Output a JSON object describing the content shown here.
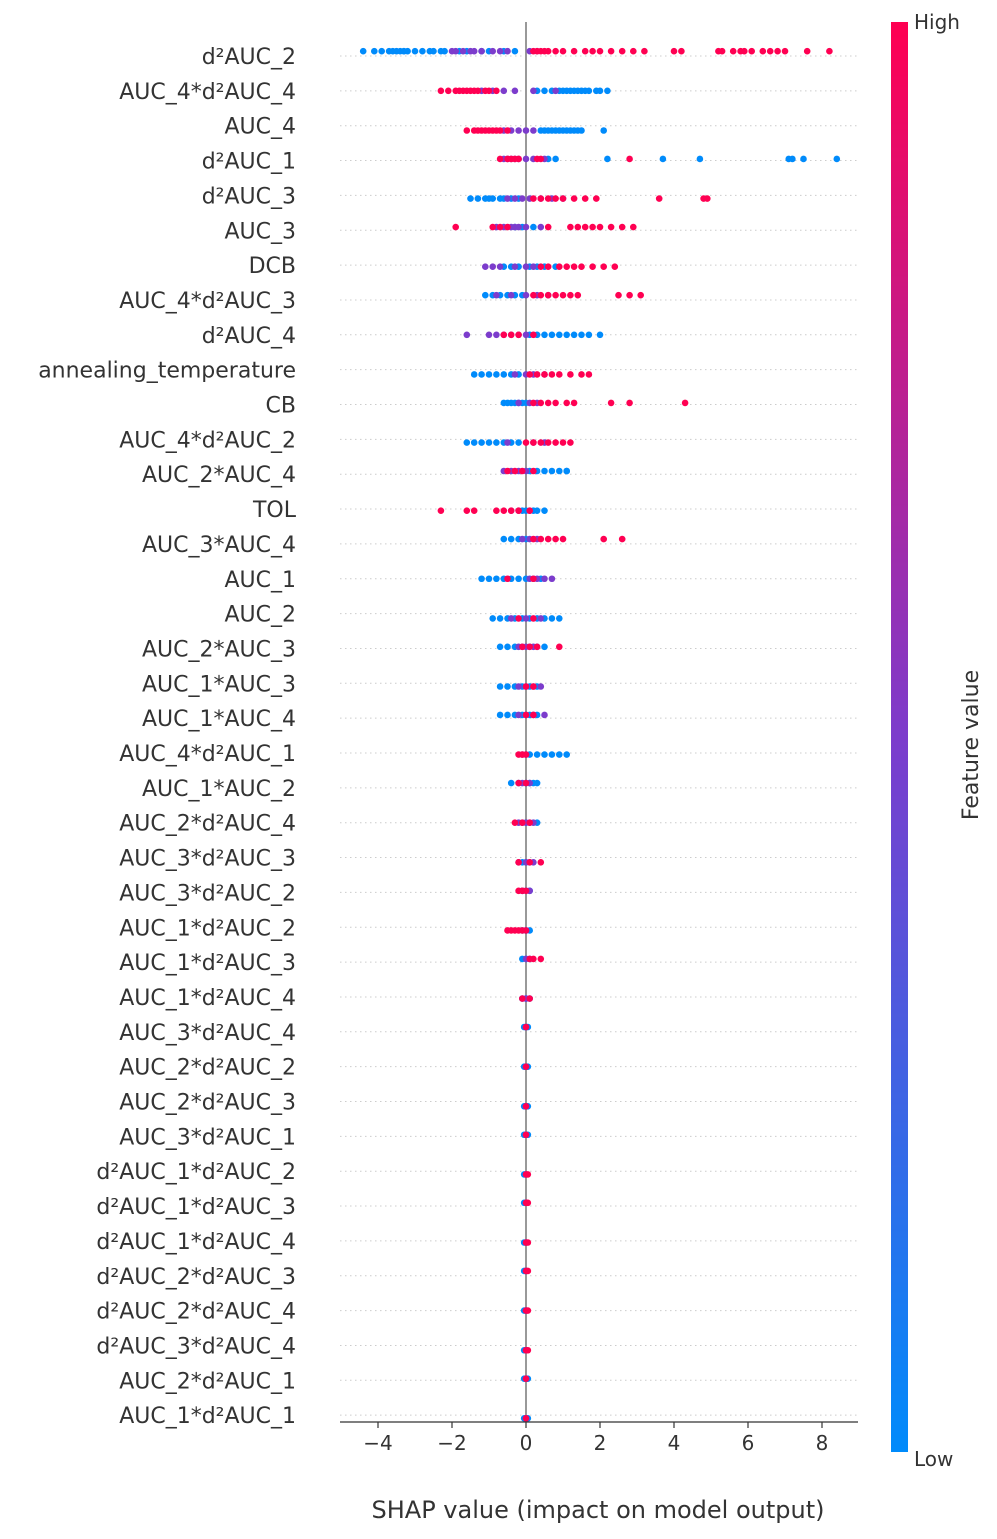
{
  "chart_data": {
    "type": "scatter",
    "subtype": "shap-beeswarm-summary",
    "xlabel": "SHAP value (impact on model output)",
    "xlim": [
      -5.0,
      9.0
    ],
    "xticks": [
      -4,
      -2,
      0,
      2,
      4,
      6,
      8
    ],
    "xtick_labels": [
      "−4",
      "−2",
      "0",
      "2",
      "4",
      "6",
      "8"
    ],
    "zero_line": 0,
    "colorbar": {
      "label": "Feature value",
      "high_label": "High",
      "low_label": "Low",
      "high_color": "#ff0052",
      "mid_color": "#7c3ccc",
      "low_color": "#008bfb"
    },
    "features": [
      {
        "name": "d²AUC_2",
        "blue": [
          -4.4,
          -4.1,
          -3.9,
          -3.7,
          -3.6,
          -3.5,
          -3.4,
          -3.3,
          -3.3,
          -3.2,
          -3.0,
          -2.8,
          -2.6,
          -2.5,
          -2.3,
          -2.2,
          -1.8,
          -1.6,
          -1.2,
          -1.0,
          -0.6,
          -0.3
        ],
        "purple": [
          -2.0,
          -1.9,
          -1.7,
          -1.5,
          -1.4,
          -1.2,
          -0.9,
          -0.7,
          -0.5,
          0.1,
          0.3
        ],
        "red": [
          0.2,
          0.3,
          0.4,
          0.5,
          0.6,
          0.8,
          1.0,
          1.3,
          1.6,
          1.8,
          2.0,
          2.3,
          2.6,
          2.9,
          3.2,
          4.0,
          4.2,
          5.2,
          5.3,
          5.6,
          5.8,
          5.9,
          6.1,
          6.4,
          6.6,
          6.8,
          7.0,
          7.6,
          8.2
        ]
      },
      {
        "name": "AUC_4*d²AUC_4",
        "blue": [
          0.3,
          0.5,
          0.7,
          0.9,
          1.0,
          1.1,
          1.2,
          1.3,
          1.4,
          1.5,
          1.6,
          1.7,
          1.9,
          2.0,
          2.2
        ],
        "purple": [
          -1.2,
          -0.9,
          -0.6,
          -0.3,
          0.2,
          0.8
        ],
        "red": [
          -2.3,
          -2.1,
          -1.9,
          -1.8,
          -1.7,
          -1.6,
          -1.5,
          -1.4,
          -1.3,
          -1.1,
          -1.0,
          -0.8
        ]
      },
      {
        "name": "AUC_4",
        "blue": [
          0.4,
          0.5,
          0.6,
          0.7,
          0.8,
          0.9,
          1.0,
          1.1,
          1.2,
          1.3,
          1.4,
          1.5,
          2.1
        ],
        "purple": [
          -0.6,
          -0.4,
          -0.2,
          0.0,
          0.2
        ],
        "red": [
          -1.6,
          -1.4,
          -1.3,
          -1.2,
          -1.1,
          -1.0,
          -0.9,
          -0.8,
          -0.7,
          -0.5
        ]
      },
      {
        "name": "d²AUC_1",
        "blue": [
          0.6,
          0.8,
          2.2,
          3.7,
          4.7,
          7.1,
          7.2,
          7.5,
          8.4
        ],
        "purple": [
          -0.6,
          -0.5,
          -0.4,
          -0.3,
          -0.2,
          0.0,
          0.2,
          0.5
        ],
        "red": [
          -0.7,
          -0.5,
          -0.4,
          -0.3,
          -0.2,
          0.3,
          0.4,
          2.8
        ]
      },
      {
        "name": "d²AUC_3",
        "blue": [
          -1.5,
          -1.3,
          -1.1,
          -1.0,
          -0.9,
          -0.7,
          -0.6,
          -0.4,
          -0.2
        ],
        "purple": [
          -0.5,
          -0.3,
          -0.1,
          0.1,
          0.4,
          0.7,
          1.0
        ],
        "red": [
          0.2,
          0.4,
          0.6,
          0.8,
          1.0,
          1.3,
          1.6,
          1.9,
          3.6,
          4.8,
          4.9
        ]
      },
      {
        "name": "AUC_3",
        "blue": [
          -0.3,
          -0.1,
          0.2
        ],
        "purple": [
          -0.8,
          -0.6,
          -0.4,
          -0.3,
          -0.2,
          0.0,
          0.4
        ],
        "red": [
          -1.9,
          -0.9,
          -0.7,
          -0.5,
          0.6,
          1.2,
          1.4,
          1.6,
          1.8,
          2.0,
          2.3,
          2.6,
          2.9
        ]
      },
      {
        "name": "DCB",
        "blue": [
          -0.6,
          -0.4,
          -0.2,
          0.1,
          0.3,
          0.5,
          0.8
        ],
        "purple": [
          -1.1,
          -0.9,
          -0.7,
          -0.3,
          0.0,
          0.2
        ],
        "red": [
          0.4,
          0.6,
          0.9,
          1.1,
          1.3,
          1.5,
          1.8,
          2.1,
          2.4
        ]
      },
      {
        "name": "AUC_4*d²AUC_3",
        "blue": [
          -1.1,
          -0.9,
          -0.7,
          -0.5,
          -0.3,
          -0.1
        ],
        "purple": [
          -0.8,
          -0.4,
          0.0,
          0.3,
          0.6
        ],
        "red": [
          0.2,
          0.4,
          0.6,
          0.8,
          1.0,
          1.2,
          1.4,
          2.5,
          2.8,
          3.1
        ]
      },
      {
        "name": "d²AUC_4",
        "blue": [
          0.1,
          0.3,
          0.5,
          0.7,
          0.9,
          1.1,
          1.3,
          1.5,
          1.7,
          2.0
        ],
        "purple": [
          -1.6,
          -1.0,
          -0.8,
          -0.6,
          -0.4,
          -0.2,
          0.0
        ],
        "red": [
          -0.6,
          -0.4,
          -0.2,
          0.2
        ]
      },
      {
        "name": "annealing_temperature",
        "blue": [
          -1.4,
          -1.2,
          -1.0,
          -0.8,
          -0.6,
          -0.4,
          -0.2
        ],
        "purple": [
          -0.3,
          0.0,
          0.2,
          0.5
        ],
        "red": [
          0.1,
          0.3,
          0.5,
          0.7,
          0.9,
          1.2,
          1.5,
          1.7
        ]
      },
      {
        "name": "CB",
        "blue": [
          -0.6,
          -0.5,
          -0.4,
          -0.3,
          -0.2,
          -0.1,
          0.0
        ],
        "purple": [
          -0.2,
          0.1,
          0.3
        ],
        "red": [
          0.2,
          0.4,
          0.6,
          0.8,
          1.1,
          1.3,
          2.3,
          2.8,
          4.3
        ]
      },
      {
        "name": "AUC_4*d²AUC_2",
        "blue": [
          -1.6,
          -1.4,
          -1.2,
          -1.0,
          -0.8,
          -0.6,
          -0.4,
          -0.2
        ],
        "purple": [
          -0.5,
          0.2,
          0.5
        ],
        "red": [
          0.0,
          0.2,
          0.4,
          0.6,
          0.8,
          1.0,
          1.2
        ]
      },
      {
        "name": "AUC_2*AUC_4",
        "blue": [
          0.1,
          0.3,
          0.5,
          0.7,
          0.9,
          1.1,
          1.1
        ],
        "purple": [
          -0.6,
          -0.4,
          -0.2,
          0.0
        ],
        "red": [
          -0.5,
          -0.3,
          -0.1,
          0.2
        ]
      },
      {
        "name": "TOL",
        "blue": [
          -0.1,
          0.0,
          0.2,
          0.3,
          0.5
        ],
        "purple": [
          -0.4,
          -0.2,
          0.1
        ],
        "red": [
          -2.3,
          -1.6,
          -1.4,
          -0.8,
          -0.6,
          -0.4,
          -0.2,
          0.1
        ]
      },
      {
        "name": "AUC_3*AUC_4",
        "blue": [
          -0.6,
          -0.4,
          -0.2,
          0.0
        ],
        "purple": [
          -0.1,
          0.1,
          0.3
        ],
        "red": [
          0.2,
          0.4,
          0.6,
          0.8,
          1.0,
          2.1,
          2.6
        ]
      },
      {
        "name": "AUC_1",
        "blue": [
          -1.2,
          -1.0,
          -0.8,
          -0.6,
          -0.4,
          -0.2,
          0.0,
          0.2,
          0.4
        ],
        "purple": [
          0.1,
          0.3,
          0.5,
          0.7
        ],
        "red": [
          -0.5,
          0.2
        ]
      },
      {
        "name": "AUC_2",
        "blue": [
          -0.9,
          -0.7,
          -0.5,
          -0.3,
          -0.1,
          0.1,
          0.3,
          0.5,
          0.7,
          0.9
        ],
        "purple": [
          -0.4,
          0.0,
          0.4
        ],
        "red": [
          -0.2,
          0.2
        ]
      },
      {
        "name": "AUC_2*AUC_3",
        "blue": [
          -0.7,
          -0.5,
          -0.3,
          -0.1,
          0.1,
          0.3,
          0.5
        ],
        "purple": [
          -0.2,
          0.0,
          0.2
        ],
        "red": [
          -0.1,
          0.1,
          0.3,
          0.9
        ]
      },
      {
        "name": "AUC_1*AUC_3",
        "blue": [
          -0.7,
          -0.5,
          -0.3,
          -0.1,
          0.1,
          0.3
        ],
        "purple": [
          -0.2,
          0.0,
          0.2,
          0.4
        ],
        "red": [
          0.0,
          0.2
        ]
      },
      {
        "name": "AUC_1*AUC_4",
        "blue": [
          -0.7,
          -0.5,
          -0.3,
          -0.1,
          0.1,
          0.3
        ],
        "purple": [
          -0.2,
          0.0,
          0.2,
          0.5
        ],
        "red": [
          0.0,
          0.2
        ]
      },
      {
        "name": "AUC_4*d²AUC_1",
        "blue": [
          0.1,
          0.3,
          0.5,
          0.7,
          0.9,
          1.1
        ],
        "purple": [
          -0.1,
          0.0
        ],
        "red": [
          -0.2,
          -0.1,
          0.0
        ]
      },
      {
        "name": "AUC_1*AUC_2",
        "blue": [
          -0.4,
          -0.2,
          0.0,
          0.1,
          0.2,
          0.3
        ],
        "purple": [
          -0.1,
          0.1
        ],
        "red": [
          -0.2,
          0.0
        ]
      },
      {
        "name": "AUC_2*d²AUC_4",
        "blue": [
          -0.1,
          0.0,
          0.1,
          0.3
        ],
        "purple": [
          -0.2,
          0.0,
          0.2
        ],
        "red": [
          -0.3,
          -0.1,
          0.1
        ]
      },
      {
        "name": "AUC_3*d²AUC_3",
        "blue": [
          -0.1,
          0.0,
          0.1
        ],
        "purple": [
          -0.2,
          0.0,
          0.2
        ],
        "red": [
          -0.2,
          0.1,
          0.4
        ]
      },
      {
        "name": "AUC_3*d²AUC_2",
        "blue": [
          -0.1,
          0.0,
          0.1
        ],
        "purple": [
          -0.1,
          0.1
        ],
        "red": [
          -0.2,
          -0.1,
          0.0
        ]
      },
      {
        "name": "AUC_1*d²AUC_2",
        "blue": [
          -0.1,
          0.0,
          0.1
        ],
        "purple": [
          0.0
        ],
        "red": [
          -0.5,
          -0.4,
          -0.3,
          -0.2,
          -0.1,
          0.0
        ]
      },
      {
        "name": "AUC_1*d²AUC_3",
        "blue": [
          -0.1,
          0.0,
          0.1
        ],
        "purple": [
          0.0
        ],
        "red": [
          0.1,
          0.2,
          0.4
        ]
      },
      {
        "name": "AUC_1*d²AUC_4",
        "blue": [
          -0.1,
          0.0,
          0.1
        ],
        "purple": [
          0.0
        ],
        "red": [
          -0.1,
          0.1
        ]
      },
      {
        "name": "AUC_3*d²AUC_4",
        "blue": [
          -0.05,
          0.0,
          0.05
        ],
        "purple": [
          0.0
        ],
        "red": [
          0.0
        ]
      },
      {
        "name": "AUC_2*d²AUC_2",
        "blue": [
          -0.05,
          0.0,
          0.05
        ],
        "purple": [
          0.0
        ],
        "red": [
          0.0
        ]
      },
      {
        "name": "AUC_2*d²AUC_3",
        "blue": [
          -0.05,
          0.0,
          0.05
        ],
        "purple": [
          0.0
        ],
        "red": [
          0.0
        ]
      },
      {
        "name": "AUC_3*d²AUC_1",
        "blue": [
          -0.05,
          0.0,
          0.05
        ],
        "purple": [
          0.0
        ],
        "red": [
          0.0
        ]
      },
      {
        "name": "d²AUC_1*d²AUC_2",
        "blue": [
          -0.05,
          0.0
        ],
        "purple": [
          0.0
        ],
        "red": [
          0.0,
          0.05
        ]
      },
      {
        "name": "d²AUC_1*d²AUC_3",
        "blue": [
          -0.05,
          0.0
        ],
        "purple": [
          0.0
        ],
        "red": [
          0.0,
          0.05
        ]
      },
      {
        "name": "d²AUC_1*d²AUC_4",
        "blue": [
          -0.05,
          0.0
        ],
        "purple": [
          0.0
        ],
        "red": [
          0.0,
          0.05
        ]
      },
      {
        "name": "d²AUC_2*d²AUC_3",
        "blue": [
          -0.05,
          0.0
        ],
        "purple": [
          0.0
        ],
        "red": [
          0.0,
          0.05
        ]
      },
      {
        "name": "d²AUC_2*d²AUC_4",
        "blue": [
          -0.05,
          0.0
        ],
        "purple": [
          0.0
        ],
        "red": [
          0.0,
          0.05
        ]
      },
      {
        "name": "d²AUC_3*d²AUC_4",
        "blue": [
          -0.05,
          0.0
        ],
        "purple": [
          0.0
        ],
        "red": [
          0.0,
          0.05
        ]
      },
      {
        "name": "AUC_2*d²AUC_1",
        "blue": [
          -0.05,
          0.0,
          0.05
        ],
        "purple": [
          0.0
        ],
        "red": [
          0.0
        ]
      },
      {
        "name": "AUC_1*d²AUC_1",
        "blue": [
          -0.05,
          0.0,
          0.05
        ],
        "purple": [
          0.0
        ],
        "red": [
          0.0
        ]
      }
    ]
  }
}
